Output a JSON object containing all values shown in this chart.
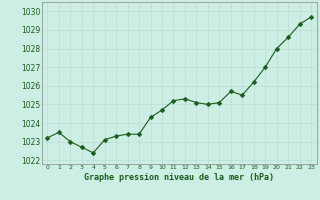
{
  "x": [
    0,
    1,
    2,
    3,
    4,
    5,
    6,
    7,
    8,
    9,
    10,
    11,
    12,
    13,
    14,
    15,
    16,
    17,
    18,
    19,
    20,
    21,
    22,
    23
  ],
  "y": [
    1023.2,
    1023.5,
    1023.0,
    1022.7,
    1022.4,
    1023.1,
    1023.3,
    1023.4,
    1023.4,
    1024.3,
    1024.7,
    1025.2,
    1025.3,
    1025.1,
    1025.0,
    1025.1,
    1025.7,
    1025.5,
    1026.2,
    1027.0,
    1028.0,
    1028.6,
    1029.3,
    1029.7
  ],
  "line_color": "#1a5c1a",
  "marker": "D",
  "marker_size": 2.5,
  "bg_color": "#cceee4",
  "grid_color": "#bbddd4",
  "xlabel": "Graphe pression niveau de la mer (hPa)",
  "xlabel_color": "#1a5c1a",
  "ylabel_ticks": [
    1022,
    1023,
    1024,
    1025,
    1026,
    1027,
    1028,
    1029,
    1030
  ],
  "ylim": [
    1021.8,
    1030.5
  ],
  "xlim": [
    -0.5,
    23.5
  ],
  "tick_color": "#1a5c1a",
  "spine_color": "#888888"
}
